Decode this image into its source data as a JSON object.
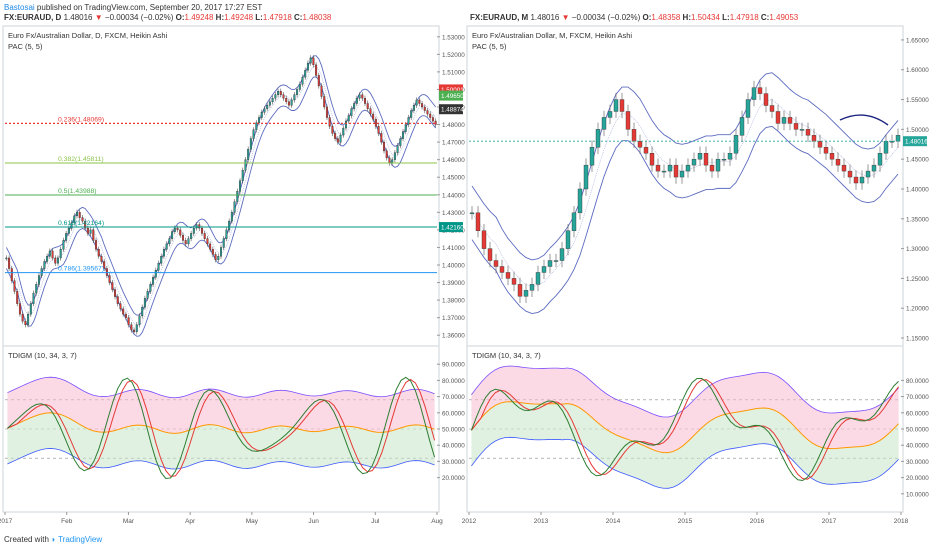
{
  "header": {
    "author": "Bastosai",
    "published": "published on TradingView.com, September 20, 2017 17:27 EST"
  },
  "footer": {
    "created_with": "Created with",
    "brand": "TradingView"
  },
  "left": {
    "symbol_line": {
      "symbol": "FX:EURAUD, D",
      "price": "1.48016",
      "change": "−0.00034 (−0.02%)",
      "o": "O:",
      "o_val": "1.49248",
      "h": "H:",
      "h_val": "1.49248",
      "l": "L:",
      "l_val": "1.47918",
      "c": "C:",
      "c_val": "1.48038"
    },
    "title": "Euro Fx/Australian Dollar, D, FXCM, Heikin Ashi",
    "indicator": "PAC (5, 5)",
    "sub_indicator": "TDIGM (10, 34, 3, 7)",
    "price_axis": [
      "1.53000",
      "1.52000",
      "1.51000",
      "1.50000",
      "1.49000",
      "1.48000",
      "1.47000",
      "1.46000",
      "1.45000",
      "1.44000",
      "1.43000",
      "1.42000",
      "1.41000",
      "1.40000",
      "1.39000",
      "1.38000",
      "1.37000",
      "1.36000"
    ],
    "osc_axis": [
      "90.0000",
      "80.0000",
      "70.0000",
      "60.0000",
      "50.0000",
      "40.0000",
      "30.0000",
      "20.0000"
    ],
    "time_axis": [
      "2017",
      "Feb",
      "Mar",
      "Apr",
      "May",
      "Jun",
      "Jul",
      "Aug"
    ],
    "fib_levels": [
      {
        "label": "0.236(1.48069)",
        "value": 1.48069,
        "color": "#e53935"
      },
      {
        "label": "0.382(1.45811)",
        "value": 1.45811,
        "color": "#8bc34a"
      },
      {
        "label": "0.5(1.43988)",
        "value": 1.43988,
        "color": "#4caf50"
      },
      {
        "label": "0.618(1.42164)",
        "value": 1.42164,
        "color": "#009688"
      },
      {
        "label": "0.786(1.39567)",
        "value": 1.39567,
        "color": "#2196f3"
      }
    ],
    "price_tags": [
      {
        "text": "1.50001",
        "color": "#e53935"
      },
      {
        "text": "1.49650",
        "color": "#4caf50"
      },
      {
        "text": "1.48874",
        "color": "#333333"
      },
      {
        "text": "1.42160",
        "color": "#009688"
      }
    ]
  },
  "right": {
    "symbol_line": {
      "symbol": "FX:EURAUD, M",
      "price": "1.48016",
      "change": "−0.00034 (−0.02%)",
      "o": "O:",
      "o_val": "1.48358",
      "h": "H:",
      "h_val": "1.50434",
      "l": "L:",
      "l_val": "1.47918",
      "c": "C:",
      "c_val": "1.49053"
    },
    "title": "Euro Fx/Australian Dollar, M, FXCM, Heikin Ashi",
    "indicator": "PAC (5, 5)",
    "sub_indicator": "TDIGM (10, 34, 3, 7)",
    "price_axis": [
      "1.65000",
      "1.60000",
      "1.55000",
      "1.50000",
      "1.45000",
      "1.40000",
      "1.35000",
      "1.30000",
      "1.25000",
      "1.20000",
      "1.15000"
    ],
    "osc_axis": [
      "80.0000",
      "70.0000",
      "60.0000",
      "50.0000",
      "40.0000",
      "30.0000",
      "20.0000",
      "10.0000"
    ],
    "time_axis": [
      "2012",
      "2013",
      "2014",
      "2015",
      "2016",
      "2017",
      "2018"
    ],
    "price_tags": [
      {
        "text": "1.48016",
        "color": "#26a69a"
      }
    ]
  },
  "chart_data": [
    {
      "type": "candlestick",
      "title": "Euro Fx/Australian Dollar, D, FXCM, Heikin Ashi",
      "ylim": [
        1.355,
        1.535
      ],
      "x_range": [
        "2017-01",
        "2017-08"
      ],
      "close_series": [
        1.404,
        1.398,
        1.391,
        1.385,
        1.378,
        1.372,
        1.368,
        1.366,
        1.372,
        1.378,
        1.384,
        1.389,
        1.394,
        1.398,
        1.402,
        1.405,
        1.408,
        1.404,
        1.401,
        1.404,
        1.409,
        1.414,
        1.418,
        1.421,
        1.424,
        1.428,
        1.43,
        1.427,
        1.425,
        1.421,
        1.418,
        1.42,
        1.414,
        1.409,
        1.405,
        1.402,
        1.398,
        1.394,
        1.39,
        1.386,
        1.382,
        1.378,
        1.375,
        1.372,
        1.37,
        1.366,
        1.363,
        1.362,
        1.366,
        1.371,
        1.376,
        1.381,
        1.385,
        1.389,
        1.393,
        1.397,
        1.401,
        1.405,
        1.409,
        1.412,
        1.415,
        1.419,
        1.421,
        1.42,
        1.417,
        1.414,
        1.412,
        1.415,
        1.418,
        1.421,
        1.423,
        1.421,
        1.418,
        1.415,
        1.412,
        1.409,
        1.406,
        1.403,
        1.405,
        1.41,
        1.415,
        1.42,
        1.425,
        1.43,
        1.436,
        1.442,
        1.448,
        1.454,
        1.46,
        1.466,
        1.472,
        1.477,
        1.481,
        1.484,
        1.487,
        1.489,
        1.491,
        1.493,
        1.495,
        1.497,
        1.499,
        1.497,
        1.495,
        1.493,
        1.491,
        1.494,
        1.497,
        1.5,
        1.503,
        1.507,
        1.511,
        1.515,
        1.518,
        1.514,
        1.508,
        1.502,
        1.496,
        1.49,
        1.484,
        1.479,
        1.475,
        1.472,
        1.47,
        1.474,
        1.478,
        1.482,
        1.485,
        1.489,
        1.492,
        1.495,
        1.497,
        1.495,
        1.492,
        1.489,
        1.486,
        1.483,
        1.479,
        1.475,
        1.47,
        1.465,
        1.461,
        1.458,
        1.46,
        1.464,
        1.468,
        1.472,
        1.476,
        1.48,
        1.484,
        1.488,
        1.491,
        1.494,
        1.492,
        1.49,
        1.488,
        1.486,
        1.484,
        1.482,
        1.48
      ]
    },
    {
      "type": "candlestick",
      "title": "Euro Fx/Australian Dollar, M, FXCM, Heikin Ashi",
      "ylim": [
        1.14,
        1.67
      ],
      "x_range": [
        "2012-01",
        "2017-09"
      ],
      "close_series": [
        1.36,
        1.33,
        1.3,
        1.28,
        1.27,
        1.26,
        1.25,
        1.24,
        1.22,
        1.23,
        1.24,
        1.26,
        1.27,
        1.28,
        1.28,
        1.3,
        1.33,
        1.36,
        1.4,
        1.44,
        1.47,
        1.5,
        1.52,
        1.53,
        1.55,
        1.53,
        1.5,
        1.48,
        1.47,
        1.46,
        1.44,
        1.43,
        1.43,
        1.44,
        1.42,
        1.43,
        1.44,
        1.45,
        1.46,
        1.44,
        1.43,
        1.45,
        1.45,
        1.46,
        1.49,
        1.52,
        1.55,
        1.57,
        1.56,
        1.54,
        1.53,
        1.51,
        1.52,
        1.51,
        1.5,
        1.5,
        1.49,
        1.48,
        1.47,
        1.46,
        1.45,
        1.44,
        1.43,
        1.42,
        1.41,
        1.42,
        1.43,
        1.44,
        1.46,
        1.48,
        1.48,
        1.49
      ]
    }
  ]
}
